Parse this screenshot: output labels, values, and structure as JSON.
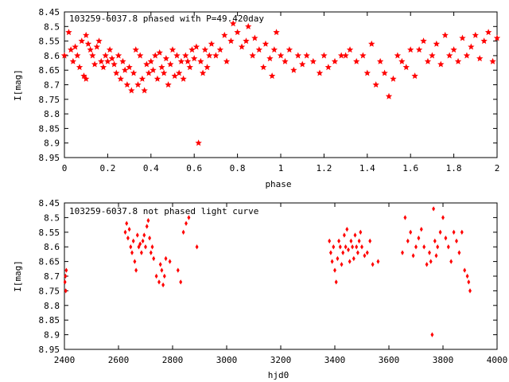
{
  "chart_data": [
    {
      "type": "scatter",
      "title": "103259-6037.8 phased with P=49.420day",
      "xlabel": "phase",
      "ylabel": "I[mag]",
      "xlim": [
        0,
        2
      ],
      "ylim": [
        8.95,
        8.45
      ],
      "y_inverted": true,
      "x_ticks": [
        "0",
        "0.2",
        "0.4",
        "0.6",
        "0.8",
        "1",
        "1.2",
        "1.4",
        "1.6",
        "1.8",
        "2"
      ],
      "y_ticks": [
        "8.45",
        "8.5",
        "8.55",
        "8.6",
        "8.65",
        "8.7",
        "8.75",
        "8.8",
        "8.85",
        "8.9",
        "8.95"
      ],
      "marker": "star",
      "color": "#ff0000",
      "x": [
        0.0,
        0.02,
        0.03,
        0.04,
        0.05,
        0.06,
        0.07,
        0.08,
        0.09,
        0.1,
        0.1,
        0.11,
        0.12,
        0.13,
        0.14,
        0.15,
        0.16,
        0.17,
        0.18,
        0.19,
        0.2,
        0.21,
        0.22,
        0.23,
        0.24,
        0.25,
        0.26,
        0.27,
        0.28,
        0.29,
        0.3,
        0.31,
        0.32,
        0.33,
        0.34,
        0.35,
        0.36,
        0.37,
        0.38,
        0.39,
        0.4,
        0.41,
        0.42,
        0.43,
        0.44,
        0.45,
        0.46,
        0.47,
        0.48,
        0.49,
        0.5,
        0.51,
        0.52,
        0.53,
        0.54,
        0.55,
        0.56,
        0.57,
        0.58,
        0.59,
        0.6,
        0.61,
        0.62,
        0.63,
        0.64,
        0.65,
        0.66,
        0.67,
        0.68,
        0.7,
        0.72,
        0.74,
        0.75,
        0.77,
        0.78,
        0.8,
        0.82,
        0.84,
        0.85,
        0.87,
        0.88,
        0.9,
        0.92,
        0.93,
        0.95,
        0.96,
        0.97,
        0.98,
        1.0,
        1.02,
        1.04,
        1.06,
        1.08,
        1.1,
        1.12,
        1.15,
        1.18,
        1.2,
        1.22,
        1.25,
        1.28,
        1.3,
        1.32,
        1.35,
        1.38,
        1.4,
        1.42,
        1.44,
        1.46,
        1.48,
        1.5,
        1.52,
        1.54,
        1.56,
        1.58,
        1.6,
        1.62,
        1.64,
        1.66,
        1.68,
        1.7,
        1.72,
        1.74,
        1.76,
        1.78,
        1.8,
        1.82,
        1.84,
        1.86,
        1.88,
        1.9,
        1.92,
        1.94,
        1.96,
        1.98,
        2.0
      ],
      "y": [
        8.6,
        8.52,
        8.58,
        8.62,
        8.57,
        8.6,
        8.64,
        8.55,
        8.67,
        8.53,
        8.68,
        8.56,
        8.58,
        8.6,
        8.63,
        8.57,
        8.55,
        8.62,
        8.64,
        8.6,
        8.62,
        8.58,
        8.61,
        8.63,
        8.66,
        8.6,
        8.68,
        8.62,
        8.65,
        8.7,
        8.64,
        8.72,
        8.66,
        8.58,
        8.7,
        8.6,
        8.68,
        8.72,
        8.63,
        8.66,
        8.62,
        8.65,
        8.6,
        8.68,
        8.59,
        8.64,
        8.66,
        8.61,
        8.7,
        8.63,
        8.58,
        8.67,
        8.6,
        8.66,
        8.62,
        8.68,
        8.6,
        8.62,
        8.64,
        8.58,
        8.61,
        8.57,
        8.9,
        8.62,
        8.66,
        8.58,
        8.64,
        8.6,
        8.56,
        8.6,
        8.58,
        8.53,
        8.62,
        8.55,
        8.49,
        8.52,
        8.57,
        8.55,
        8.5,
        8.6,
        8.54,
        8.58,
        8.64,
        8.56,
        8.61,
        8.67,
        8.58,
        8.52,
        8.6,
        8.62,
        8.58,
        8.65,
        8.6,
        8.63,
        8.6,
        8.62,
        8.66,
        8.6,
        8.64,
        8.62,
        8.6,
        8.6,
        8.58,
        8.62,
        8.6,
        8.66,
        8.56,
        8.7,
        8.62,
        8.66,
        8.74,
        8.68,
        8.6,
        8.62,
        8.64,
        8.58,
        8.67,
        8.58,
        8.55,
        8.62,
        8.6,
        8.56,
        8.63,
        8.53,
        8.6,
        8.58,
        8.62,
        8.54,
        8.6,
        8.57,
        8.53,
        8.61,
        8.55,
        8.52,
        8.62,
        8.54
      ]
    },
    {
      "type": "scatter",
      "title": "103259-6037.8 not phased light curve",
      "xlabel": "hjd0",
      "ylabel": "I[mag]",
      "xlim": [
        2400,
        4000
      ],
      "ylim": [
        8.95,
        8.45
      ],
      "y_inverted": true,
      "x_ticks": [
        "2400",
        "2600",
        "2800",
        "3000",
        "3200",
        "3400",
        "3600",
        "3800",
        "4000"
      ],
      "y_ticks": [
        "8.45",
        "8.5",
        "8.55",
        "8.6",
        "8.65",
        "8.7",
        "8.75",
        "8.8",
        "8.85",
        "8.9",
        "8.95"
      ],
      "marker": "diamond",
      "color": "#ff0000",
      "x": [
        2402,
        2404,
        2405,
        2407,
        2625,
        2630,
        2635,
        2640,
        2645,
        2650,
        2655,
        2660,
        2665,
        2670,
        2675,
        2680,
        2685,
        2690,
        2695,
        2700,
        2705,
        2710,
        2715,
        2720,
        2725,
        2730,
        2740,
        2750,
        2755,
        2760,
        2765,
        2770,
        2775,
        2790,
        2820,
        2830,
        2840,
        2850,
        2860,
        2890,
        3380,
        3385,
        3390,
        3395,
        3400,
        3405,
        3410,
        3415,
        3420,
        3425,
        3430,
        3435,
        3440,
        3445,
        3450,
        3455,
        3460,
        3465,
        3470,
        3475,
        3480,
        3485,
        3490,
        3495,
        3500,
        3510,
        3520,
        3530,
        3540,
        3560,
        3650,
        3660,
        3670,
        3680,
        3690,
        3700,
        3710,
        3720,
        3730,
        3740,
        3750,
        3755,
        3760,
        3765,
        3770,
        3775,
        3780,
        3790,
        3800,
        3810,
        3820,
        3830,
        3840,
        3850,
        3860,
        3870,
        3880,
        3890,
        3895,
        3900
      ],
      "y": [
        8.72,
        8.7,
        8.75,
        8.68,
        8.55,
        8.52,
        8.57,
        8.54,
        8.6,
        8.62,
        8.58,
        8.65,
        8.68,
        8.56,
        8.6,
        8.59,
        8.62,
        8.58,
        8.56,
        8.6,
        8.53,
        8.51,
        8.57,
        8.62,
        8.6,
        8.64,
        8.7,
        8.72,
        8.66,
        8.68,
        8.73,
        8.7,
        8.64,
        8.65,
        8.68,
        8.72,
        8.55,
        8.52,
        8.5,
        8.6,
        8.58,
        8.62,
        8.65,
        8.6,
        8.68,
        8.72,
        8.64,
        8.58,
        8.6,
        8.66,
        8.62,
        8.56,
        8.6,
        8.54,
        8.61,
        8.65,
        8.58,
        8.6,
        8.64,
        8.56,
        8.6,
        8.62,
        8.58,
        8.55,
        8.6,
        8.63,
        8.62,
        8.58,
        8.66,
        8.65,
        8.62,
        8.5,
        8.58,
        8.55,
        8.63,
        8.6,
        8.57,
        8.54,
        8.6,
        8.66,
        8.62,
        8.65,
        8.9,
        8.47,
        8.58,
        8.63,
        8.6,
        8.55,
        8.5,
        8.57,
        8.6,
        8.65,
        8.55,
        8.58,
        8.62,
        8.55,
        8.68,
        8.7,
        8.72,
        8.75
      ]
    }
  ]
}
